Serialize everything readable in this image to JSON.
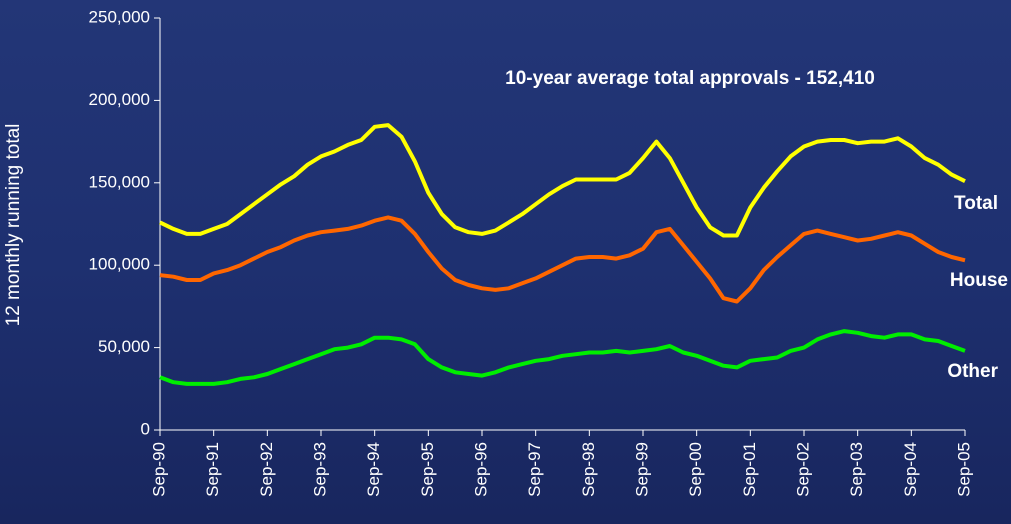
{
  "chart_data": {
    "type": "line",
    "annotation": "10-year average total approvals - 152,410",
    "y_label": "12 monthly running total",
    "categories": [
      "Sep-90",
      null,
      null,
      null,
      "Sep-91",
      null,
      null,
      null,
      "Sep-92",
      null,
      null,
      null,
      "Sep-93",
      null,
      null,
      null,
      "Sep-94",
      null,
      null,
      null,
      "Sep-95",
      null,
      null,
      null,
      "Sep-96",
      null,
      null,
      null,
      "Sep-97",
      null,
      null,
      null,
      "Sep-98",
      null,
      null,
      null,
      "Sep-99",
      null,
      null,
      null,
      "Sep-00",
      null,
      null,
      null,
      "Sep-01",
      null,
      null,
      null,
      "Sep-02",
      null,
      null,
      null,
      "Sep-03",
      null,
      null,
      null,
      "Sep-04",
      null,
      null,
      null,
      "Sep-05"
    ],
    "series": [
      {
        "name": "Total",
        "color": "#ffff00",
        "values": [
          126000,
          122000,
          119000,
          119000,
          122000,
          125000,
          131000,
          137000,
          143000,
          149000,
          154000,
          161000,
          166000,
          169000,
          173000,
          176000,
          184000,
          185000,
          178000,
          163000,
          144000,
          131000,
          123000,
          120000,
          119000,
          121000,
          126000,
          131000,
          137000,
          143000,
          148000,
          152000,
          152000,
          152000,
          152000,
          156000,
          165000,
          175000,
          165000,
          150000,
          135000,
          123000,
          118000,
          118000,
          135000,
          147000,
          157000,
          166000,
          172000,
          175000,
          176000,
          176000,
          174000,
          175000,
          175000,
          177000,
          172000,
          165000,
          161000,
          155000,
          151000
        ]
      },
      {
        "name": "House",
        "color": "#ff6600",
        "values": [
          94000,
          93000,
          91000,
          91000,
          95000,
          97000,
          100000,
          104000,
          108000,
          111000,
          115000,
          118000,
          120000,
          121000,
          122000,
          124000,
          127000,
          129000,
          127000,
          119000,
          108000,
          98000,
          91000,
          88000,
          86000,
          85000,
          86000,
          89000,
          92000,
          96000,
          100000,
          104000,
          105000,
          105000,
          104000,
          106000,
          110000,
          120000,
          122000,
          112000,
          102000,
          92000,
          80000,
          78000,
          86000,
          97000,
          105000,
          112000,
          119000,
          121000,
          119000,
          117000,
          115000,
          116000,
          118000,
          120000,
          118000,
          113000,
          108000,
          105000,
          103000
        ]
      },
      {
        "name": "Other",
        "color": "#00ee00",
        "values": [
          32000,
          29000,
          28000,
          28000,
          28000,
          29000,
          31000,
          32000,
          34000,
          37000,
          40000,
          43000,
          46000,
          49000,
          50000,
          52000,
          56000,
          56000,
          55000,
          52000,
          43000,
          38000,
          35000,
          34000,
          33000,
          35000,
          38000,
          40000,
          42000,
          43000,
          45000,
          46000,
          47000,
          47000,
          48000,
          47000,
          48000,
          49000,
          51000,
          47000,
          45000,
          42000,
          39000,
          38000,
          42000,
          43000,
          44000,
          48000,
          50000,
          55000,
          58000,
          60000,
          59000,
          57000,
          56000,
          58000,
          58000,
          55000,
          54000,
          51000,
          48000
        ]
      }
    ],
    "ylim": [
      0,
      250000
    ],
    "yticks": [
      0,
      {
        "value": 50000,
        "label": "50,000"
      },
      {
        "value": 100000,
        "label": "100,000"
      },
      {
        "value": 150000,
        "label": "150,000"
      },
      {
        "value": 200000,
        "label": "200,000"
      },
      {
        "value": 250000,
        "label": "250,000"
      }
    ],
    "grid": false
  }
}
